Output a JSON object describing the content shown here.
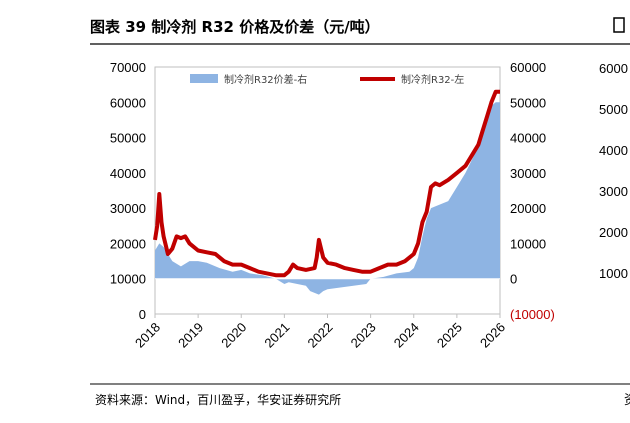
{
  "header": {
    "title": "图表 39 制冷剂 R32 价格及价差（元/吨）"
  },
  "source": "资料来源：Wind，百川盈孚，华安证券研究所",
  "chart_data": {
    "type": "line",
    "title": "图表 39 制冷剂 R32 价格及价差（元/吨）",
    "x_ticks": [
      "2018",
      "2019",
      "2020",
      "2021",
      "2022",
      "2023",
      "2024",
      "2025",
      "2026"
    ],
    "left_axis": {
      "ylim": [
        0,
        70000
      ],
      "ticks": [
        "0",
        "10000",
        "20000",
        "30000",
        "40000",
        "50000",
        "60000",
        "70000"
      ]
    },
    "right_axis": {
      "ylim": [
        -10000,
        60000
      ],
      "ticks": [
        "(10000)",
        "0",
        "10000",
        "20000",
        "30000",
        "40000",
        "50000",
        "60000"
      ]
    },
    "legend_position": "top-center",
    "grid": false,
    "series": [
      {
        "name": "制冷剂R32价差-右",
        "type": "area",
        "axis": "right",
        "color": "#8eb4e3",
        "x": [
          2018.0,
          2018.1,
          2018.2,
          2018.3,
          2018.4,
          2018.6,
          2018.8,
          2019.0,
          2019.2,
          2019.5,
          2019.8,
          2020.0,
          2020.2,
          2020.5,
          2020.8,
          2021.0,
          2021.1,
          2021.3,
          2021.5,
          2021.6,
          2021.8,
          2021.9,
          2022.0,
          2022.3,
          2022.6,
          2022.9,
          2023.0,
          2023.3,
          2023.6,
          2023.9,
          2024.0,
          2024.1,
          2024.2,
          2024.3,
          2024.4,
          2024.6,
          2024.8,
          2025.0,
          2025.2,
          2025.4,
          2025.5,
          2025.6,
          2025.7,
          2025.8,
          2025.9,
          2026.0
        ],
        "values": [
          8000,
          10000,
          9000,
          7000,
          5000,
          3500,
          5000,
          5000,
          4500,
          3000,
          2000,
          2500,
          1500,
          1000,
          0,
          -1500,
          -1000,
          -1500,
          -2000,
          -3500,
          -4500,
          -3500,
          -3000,
          -2500,
          -2000,
          -1500,
          0,
          500,
          1500,
          2000,
          3000,
          6000,
          12000,
          17000,
          20000,
          21000,
          22000,
          26000,
          30000,
          35000,
          38000,
          42000,
          46000,
          49000,
          50000,
          50000
        ]
      },
      {
        "name": "制冷剂R32-左",
        "type": "line",
        "axis": "left",
        "color": "#c00000",
        "x": [
          2018.0,
          2018.05,
          2018.1,
          2018.15,
          2018.2,
          2018.3,
          2018.4,
          2018.5,
          2018.6,
          2018.7,
          2018.8,
          2019.0,
          2019.2,
          2019.4,
          2019.6,
          2019.8,
          2020.0,
          2020.2,
          2020.4,
          2020.6,
          2020.8,
          2021.0,
          2021.1,
          2021.2,
          2021.3,
          2021.5,
          2021.7,
          2021.75,
          2021.8,
          2021.9,
          2022.0,
          2022.2,
          2022.4,
          2022.6,
          2022.8,
          2023.0,
          2023.2,
          2023.4,
          2023.6,
          2023.8,
          2024.0,
          2024.1,
          2024.2,
          2024.3,
          2024.4,
          2024.5,
          2024.6,
          2024.8,
          2025.0,
          2025.2,
          2025.4,
          2025.5,
          2025.6,
          2025.7,
          2025.8,
          2025.9,
          2026.0
        ],
        "values": [
          21000,
          25000,
          34000,
          26000,
          22000,
          17000,
          18500,
          22000,
          21500,
          22000,
          20000,
          18000,
          17500,
          17000,
          15000,
          14000,
          14000,
          13000,
          12000,
          11500,
          11000,
          11000,
          12000,
          14000,
          13000,
          12500,
          13000,
          16000,
          21000,
          16000,
          14500,
          14000,
          13000,
          12500,
          12000,
          12000,
          13000,
          14000,
          14000,
          15000,
          17000,
          20000,
          26000,
          29000,
          36000,
          37000,
          36500,
          38000,
          40000,
          42000,
          46000,
          48000,
          52000,
          56000,
          60000,
          63000,
          63000
        ]
      }
    ]
  },
  "second_panel": {
    "ticks": [
      "6000",
      "5000",
      "4000",
      "3000",
      "2000",
      "1000"
    ]
  }
}
